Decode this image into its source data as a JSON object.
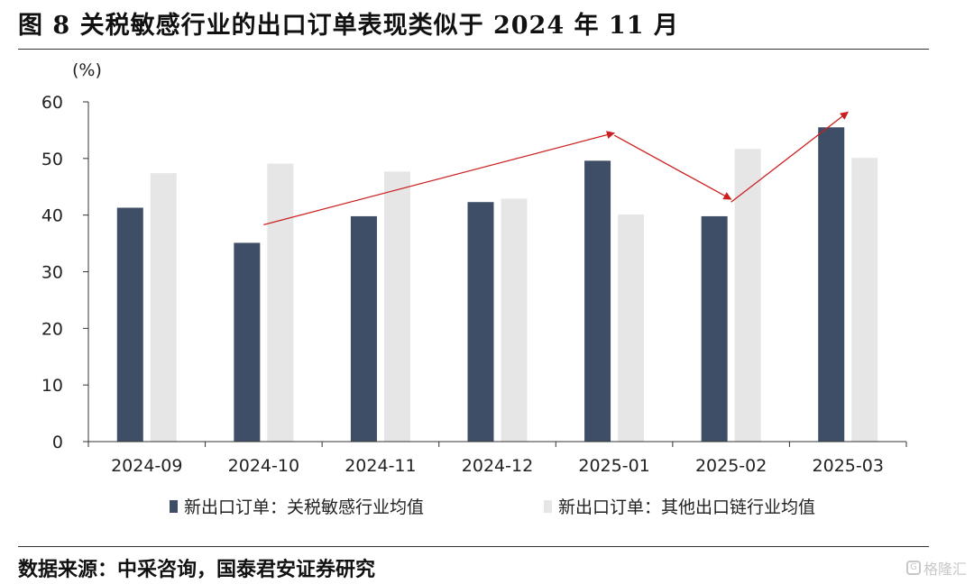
{
  "title": "图 8 关税敏感行业的出口订单表现类似于 2024 年 11 月",
  "source": "数据来源：中采咨询，国泰君安证券研究",
  "watermark": "格隆汇",
  "chart_data": {
    "type": "bar",
    "title": "图 8 关税敏感行业的出口订单表现类似于 2024 年 11 月",
    "ylabel": "(%)",
    "xlabel": "",
    "ylim": [
      0,
      60
    ],
    "yticks": [
      0,
      10,
      20,
      30,
      40,
      50,
      60
    ],
    "grid": false,
    "legend_position": "bottom",
    "categories": [
      "2024-09",
      "2024-10",
      "2024-11",
      "2024-12",
      "2025-01",
      "2025-02",
      "2025-03"
    ],
    "series": [
      {
        "name": "新出口订单：关税敏感行业均值",
        "color": "#3d4e66",
        "values": [
          41.3,
          35.1,
          39.8,
          42.3,
          49.6,
          39.8,
          55.5
        ]
      },
      {
        "name": "新出口订单：其他出口链行业均值",
        "color": "#e6e6e6",
        "values": [
          47.4,
          49.1,
          47.7,
          42.9,
          40.1,
          51.7,
          50.1
        ]
      }
    ],
    "annotations": [
      {
        "type": "arrow",
        "color": "#cc1f1f",
        "from": {
          "category": "2024-10",
          "value": 38.3
        },
        "to": {
          "category": "2025-01",
          "value": 54.5
        }
      },
      {
        "type": "arrow",
        "color": "#cc1f1f",
        "from": {
          "category": "2025-01",
          "value": 54.1
        },
        "to": {
          "category": "2025-02",
          "value": 42.8
        }
      },
      {
        "type": "arrow",
        "color": "#cc1f1f",
        "from": {
          "category": "2025-02",
          "value": 42.3
        },
        "to": {
          "category": "2025-03",
          "value": 58.2
        }
      }
    ]
  }
}
